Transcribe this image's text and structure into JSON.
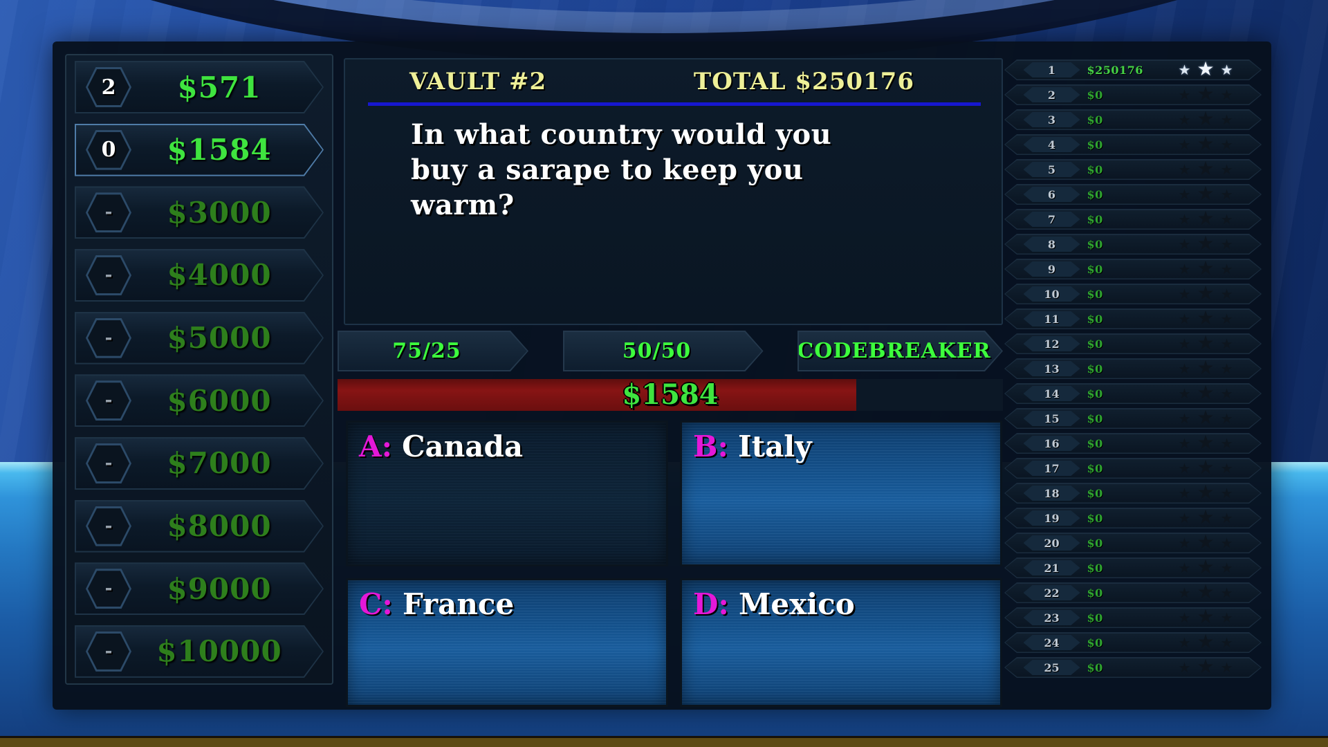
{
  "icons": {
    "star": "★"
  },
  "colors": {
    "money_bright_green": "#3fe43f",
    "money_dim_green": "#2e7f1c",
    "lifeline_green": "#3dff3d",
    "scoreboard_green": "#2fa52f",
    "scoreboard_green_lit": "#45d245",
    "header_yellow": "#eef098",
    "header_underline_blue": "#1717d0",
    "answer_letter_magenta": "#e418d8",
    "progress_red": "#871414",
    "star_lit": "#dde7f1",
    "bottom_strip_olive": "#5d4b15"
  },
  "ladder": {
    "items": [
      {
        "badge": "2",
        "amount": "$571",
        "tone": "lit",
        "active": false
      },
      {
        "badge": "0",
        "amount": "$1584",
        "tone": "lit",
        "active": true
      },
      {
        "badge": "-",
        "amount": "$3000",
        "tone": "dim",
        "active": false
      },
      {
        "badge": "-",
        "amount": "$4000",
        "tone": "dim",
        "active": false
      },
      {
        "badge": "-",
        "amount": "$5000",
        "tone": "dim",
        "active": false
      },
      {
        "badge": "-",
        "amount": "$6000",
        "tone": "dim",
        "active": false
      },
      {
        "badge": "-",
        "amount": "$7000",
        "tone": "dim",
        "active": false
      },
      {
        "badge": "-",
        "amount": "$8000",
        "tone": "dim",
        "active": false
      },
      {
        "badge": "-",
        "amount": "$9000",
        "tone": "dim",
        "active": false
      },
      {
        "badge": "-",
        "amount": "$10000",
        "tone": "dim",
        "active": false
      }
    ]
  },
  "question_panel": {
    "vault_label": "VAULT #2",
    "total_label": "TOTAL $250176",
    "question": "In what country would you buy a sarape to keep you warm?"
  },
  "lifelines": [
    {
      "label": "75/25"
    },
    {
      "label": "50/50"
    },
    {
      "label": "CODEBREAKER"
    }
  ],
  "progress": {
    "label": "$1584",
    "fill_pct": 78
  },
  "answers": [
    {
      "letter": "A:",
      "text": "Canada",
      "style": "dark"
    },
    {
      "letter": "B:",
      "text": "Italy",
      "style": "blue"
    },
    {
      "letter": "C:",
      "text": "France",
      "style": "blue"
    },
    {
      "letter": "D:",
      "text": "Mexico",
      "style": "blue"
    }
  ],
  "scoreboard": {
    "rows": [
      {
        "rank": "1",
        "amount": "$250176",
        "stars_lit": true
      },
      {
        "rank": "2",
        "amount": "$0",
        "stars_lit": false
      },
      {
        "rank": "3",
        "amount": "$0",
        "stars_lit": false
      },
      {
        "rank": "4",
        "amount": "$0",
        "stars_lit": false
      },
      {
        "rank": "5",
        "amount": "$0",
        "stars_lit": false
      },
      {
        "rank": "6",
        "amount": "$0",
        "stars_lit": false
      },
      {
        "rank": "7",
        "amount": "$0",
        "stars_lit": false
      },
      {
        "rank": "8",
        "amount": "$0",
        "stars_lit": false
      },
      {
        "rank": "9",
        "amount": "$0",
        "stars_lit": false
      },
      {
        "rank": "10",
        "amount": "$0",
        "stars_lit": false
      },
      {
        "rank": "11",
        "amount": "$0",
        "stars_lit": false
      },
      {
        "rank": "12",
        "amount": "$0",
        "stars_lit": false
      },
      {
        "rank": "13",
        "amount": "$0",
        "stars_lit": false
      },
      {
        "rank": "14",
        "amount": "$0",
        "stars_lit": false
      },
      {
        "rank": "15",
        "amount": "$0",
        "stars_lit": false
      },
      {
        "rank": "16",
        "amount": "$0",
        "stars_lit": false
      },
      {
        "rank": "17",
        "amount": "$0",
        "stars_lit": false
      },
      {
        "rank": "18",
        "amount": "$0",
        "stars_lit": false
      },
      {
        "rank": "19",
        "amount": "$0",
        "stars_lit": false
      },
      {
        "rank": "20",
        "amount": "$0",
        "stars_lit": false
      },
      {
        "rank": "21",
        "amount": "$0",
        "stars_lit": false
      },
      {
        "rank": "22",
        "amount": "$0",
        "stars_lit": false
      },
      {
        "rank": "23",
        "amount": "$0",
        "stars_lit": false
      },
      {
        "rank": "24",
        "amount": "$0",
        "stars_lit": false
      },
      {
        "rank": "25",
        "amount": "$0",
        "stars_lit": false
      }
    ]
  }
}
